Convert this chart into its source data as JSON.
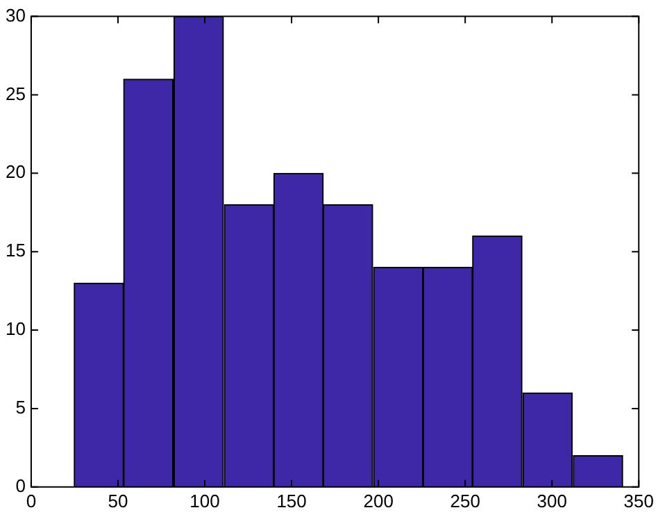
{
  "chart_data": {
    "type": "histogram",
    "bins": [
      25,
      53,
      82,
      111,
      140,
      168,
      197,
      226,
      254,
      283,
      312,
      341
    ],
    "values": [
      13,
      26,
      30,
      18,
      20,
      18,
      14,
      14,
      16,
      6,
      2
    ],
    "color": "#3f28a8",
    "xlim": [
      0,
      350
    ],
    "xticks": [
      0,
      50,
      100,
      150,
      200,
      250,
      300,
      350
    ],
    "ylim": [
      0,
      30
    ],
    "yticks": [
      0,
      5,
      10,
      15,
      20,
      25,
      30
    ],
    "grid": false,
    "legend": false
  }
}
